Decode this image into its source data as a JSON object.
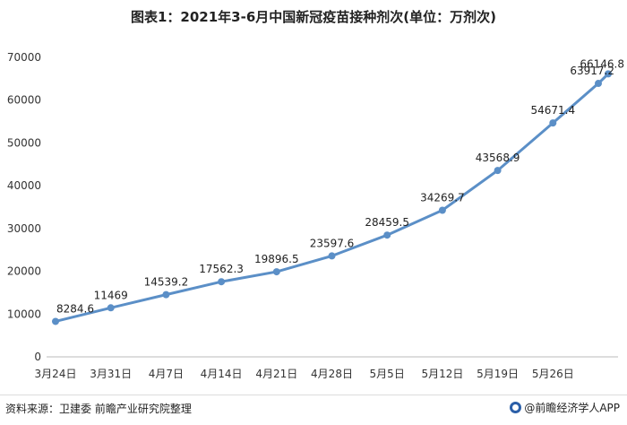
{
  "header": {
    "title": "图表1：2021年3-6月中国新冠疫苗接种剂次(单位：万剂次)"
  },
  "footer": {
    "source": "资料来源：卫建委 前瞻产业研究院整理",
    "brand": "@前瞻经济学人APP"
  },
  "colors": {
    "line": "#5b8fc7",
    "marker": "#5b8fc7"
  },
  "chart_data": {
    "type": "line",
    "title": "图表1：2021年3-6月中国新冠疫苗接种剂次(单位：万剂次)",
    "xlabel": "",
    "ylabel": "",
    "ylim": [
      0,
      70000
    ],
    "y_ticks": [
      0,
      10000,
      20000,
      30000,
      40000,
      50000,
      60000,
      70000
    ],
    "x_tick_labels": [
      "3月24日",
      "3月31日",
      "4月7日",
      "4月14日",
      "4月21日",
      "4月28日",
      "5月5日",
      "5月12日",
      "5月19日",
      "5月26日"
    ],
    "grid": false,
    "points": [
      {
        "label": "3月24日",
        "value": 8284.6,
        "text": "8284.6"
      },
      {
        "label": "3月31日",
        "value": 11469,
        "text": "11469"
      },
      {
        "label": "4月7日",
        "value": 14539.2,
        "text": "14539.2"
      },
      {
        "label": "4月14日",
        "value": 17562.3,
        "text": "17562.3"
      },
      {
        "label": "4月21日",
        "value": 19896.5,
        "text": "19896.5"
      },
      {
        "label": "4月28日",
        "value": 23597.6,
        "text": "23597.6"
      },
      {
        "label": "5月5日",
        "value": 28459.5,
        "text": "28459.5"
      },
      {
        "label": "5月12日",
        "value": 34269.7,
        "text": "34269.7"
      },
      {
        "label": "5月19日",
        "value": 43568.9,
        "text": "43568.9"
      },
      {
        "label": "5月26日",
        "value": 54671.4,
        "text": "54671.4"
      },
      {
        "label": "",
        "value": 63917.2,
        "text": "63917.2"
      },
      {
        "label": "",
        "value": 66146.8,
        "text": "66146.8"
      }
    ]
  }
}
